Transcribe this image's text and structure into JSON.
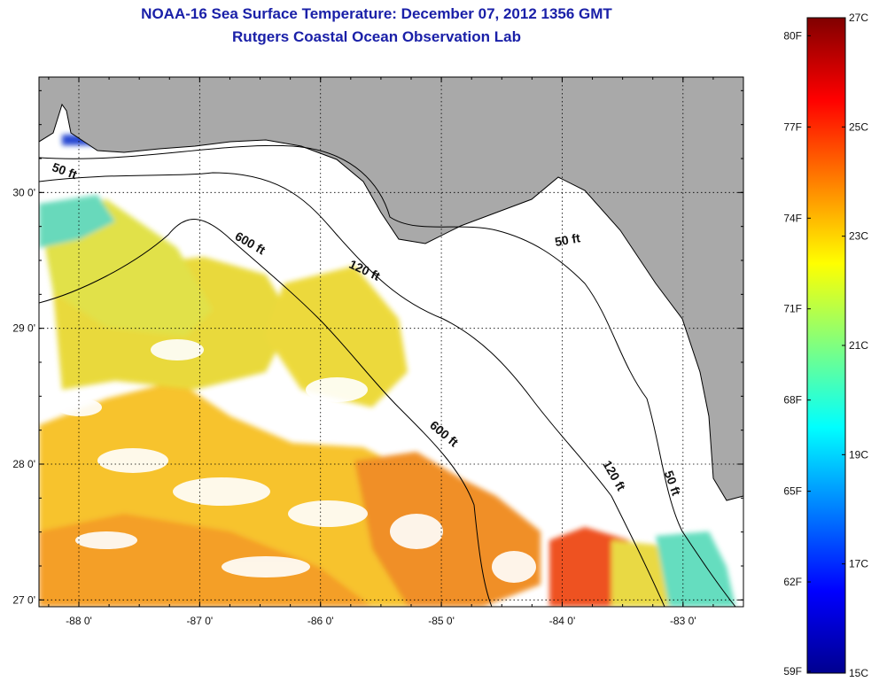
{
  "title_line1": "NOAA-16 Sea Surface Temperature:  December 07, 2012 1356 GMT",
  "title_line2": "Rutgers Coastal Ocean Observation Lab",
  "axes": {
    "longitude_ticks": [
      {
        "value": -88,
        "label": "-88 0'"
      },
      {
        "value": -87,
        "label": "-87 0'"
      },
      {
        "value": -86,
        "label": "-86 0'"
      },
      {
        "value": -85,
        "label": "-85 0'"
      },
      {
        "value": -84,
        "label": "-84 0'"
      },
      {
        "value": -83,
        "label": "-83 0'"
      }
    ],
    "latitude_ticks": [
      {
        "value": 30,
        "label": "30 0'"
      },
      {
        "value": 29,
        "label": "29 0'"
      },
      {
        "value": 28,
        "label": "28 0'"
      },
      {
        "value": 27,
        "label": "27 0'"
      }
    ],
    "lon_range": [
      -88.33,
      -82.5
    ],
    "lat_range": [
      26.95,
      30.85
    ]
  },
  "contour_labels": [
    {
      "text": "50 ft",
      "lon": -88.13,
      "lat": 30.13
    },
    {
      "text": "600 ft",
      "lon": -86.6,
      "lat": 29.6
    },
    {
      "text": "120 ft",
      "lon": -85.65,
      "lat": 29.4
    },
    {
      "text": "50 ft",
      "lon": -83.95,
      "lat": 29.62
    },
    {
      "text": "600 ft",
      "lon": -85.0,
      "lat": 28.2
    },
    {
      "text": "120 ft",
      "lon": -83.6,
      "lat": 27.9
    },
    {
      "text": "50 ft",
      "lon": -83.12,
      "lat": 27.85
    }
  ],
  "colorbar": {
    "fahrenheit_labels": [
      {
        "text": "80F",
        "value_c": 26.67
      },
      {
        "text": "77F",
        "value_c": 25.0
      },
      {
        "text": "74F",
        "value_c": 23.33
      },
      {
        "text": "71F",
        "value_c": 21.67
      },
      {
        "text": "68F",
        "value_c": 20.0
      },
      {
        "text": "65F",
        "value_c": 18.33
      },
      {
        "text": "62F",
        "value_c": 16.67
      },
      {
        "text": "59F",
        "value_c": 15.0
      }
    ],
    "celsius_labels": [
      {
        "text": "27C",
        "value_c": 27
      },
      {
        "text": "25C",
        "value_c": 25
      },
      {
        "text": "23C",
        "value_c": 23
      },
      {
        "text": "21C",
        "value_c": 21
      },
      {
        "text": "19C",
        "value_c": 19
      },
      {
        "text": "17C",
        "value_c": 17
      },
      {
        "text": "15C",
        "value_c": 15
      }
    ],
    "range_c": [
      15,
      27
    ],
    "colormap": "jet"
  },
  "colors": {
    "land": "#a9a9a9",
    "no_data": "#ffffff",
    "title": "#1a20a8"
  }
}
